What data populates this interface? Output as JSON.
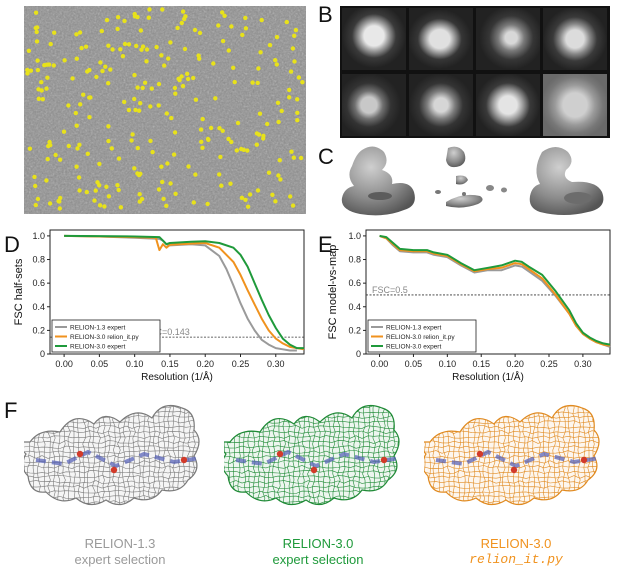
{
  "panels": {
    "A": "",
    "B": "B",
    "C": "C",
    "D": "D",
    "E": "E",
    "F": "F"
  },
  "colors": {
    "grey": "#9a9a9a",
    "orange": "#f0921e",
    "green": "#1f9a3b",
    "particle": "#e8e21a"
  },
  "chart_data": [
    {
      "type": "line",
      "title": "",
      "xlabel": "Resolution (1/Å)",
      "ylabel": "FSC half-sets",
      "xlim": [
        -0.02,
        0.34
      ],
      "ylim": [
        0,
        1.05
      ],
      "xticks": [
        "0.00",
        "0.05",
        "0.10",
        "0.15",
        "0.20",
        "0.25",
        "0.30"
      ],
      "yticks": [
        "0",
        "0.2",
        "0.4",
        "0.6",
        "0.8",
        "1.0"
      ],
      "threshold": {
        "value": 0.143,
        "label": "FSC=0.143"
      },
      "legend_position": "bottom-left",
      "series": [
        {
          "name": "RELION-1.3 expert",
          "color": "#9a9a9a",
          "x": [
            0,
            0.05,
            0.1,
            0.135,
            0.14,
            0.145,
            0.15,
            0.18,
            0.2,
            0.22,
            0.23,
            0.24,
            0.25,
            0.26,
            0.27,
            0.28,
            0.29,
            0.3,
            0.31,
            0.32,
            0.33
          ],
          "y": [
            1.0,
            0.995,
            0.985,
            0.975,
            0.96,
            0.93,
            0.92,
            0.93,
            0.92,
            0.83,
            0.72,
            0.58,
            0.43,
            0.3,
            0.2,
            0.12,
            0.08,
            0.05,
            0.04,
            0.03,
            0.03
          ]
        },
        {
          "name": "RELION-3.0 relion_it.py",
          "color": "#f0921e",
          "x": [
            0,
            0.05,
            0.1,
            0.13,
            0.135,
            0.14,
            0.145,
            0.15,
            0.18,
            0.2,
            0.22,
            0.24,
            0.25,
            0.26,
            0.27,
            0.28,
            0.29,
            0.3,
            0.31,
            0.32,
            0.33,
            0.34
          ],
          "y": [
            1.0,
            0.995,
            0.99,
            0.985,
            0.88,
            0.93,
            0.9,
            0.925,
            0.935,
            0.94,
            0.9,
            0.78,
            0.67,
            0.54,
            0.42,
            0.3,
            0.2,
            0.13,
            0.09,
            0.06,
            0.05,
            0.04
          ]
        },
        {
          "name": "RELION-3.0 expert",
          "color": "#1f9a3b",
          "x": [
            0,
            0.05,
            0.1,
            0.135,
            0.14,
            0.145,
            0.15,
            0.18,
            0.2,
            0.22,
            0.24,
            0.25,
            0.26,
            0.27,
            0.28,
            0.29,
            0.3,
            0.31,
            0.32,
            0.33,
            0.34
          ],
          "y": [
            1.0,
            0.998,
            0.995,
            0.99,
            0.96,
            0.93,
            0.94,
            0.95,
            0.955,
            0.94,
            0.9,
            0.84,
            0.74,
            0.6,
            0.46,
            0.33,
            0.22,
            0.13,
            0.08,
            0.05,
            0.05
          ]
        }
      ]
    },
    {
      "type": "line",
      "title": "",
      "xlabel": "Resolution (1/Å)",
      "ylabel": "FSC model-vs-map",
      "xlim": [
        -0.02,
        0.34
      ],
      "ylim": [
        0,
        1.05
      ],
      "xticks": [
        "0.00",
        "0.05",
        "0.10",
        "0.15",
        "0.20",
        "0.25",
        "0.30"
      ],
      "yticks": [
        "0",
        "0.2",
        "0.4",
        "0.6",
        "0.8",
        "1.0"
      ],
      "threshold": {
        "value": 0.5,
        "label": "FSC=0.5"
      },
      "legend_position": "bottom-left",
      "series": [
        {
          "name": "RELION-1.3 expert",
          "color": "#9a9a9a",
          "x": [
            0,
            0.01,
            0.02,
            0.03,
            0.05,
            0.07,
            0.08,
            0.1,
            0.12,
            0.14,
            0.16,
            0.18,
            0.2,
            0.21,
            0.22,
            0.24,
            0.26,
            0.28,
            0.29,
            0.3,
            0.31,
            0.32,
            0.33,
            0.34
          ],
          "y": [
            1.0,
            0.98,
            0.92,
            0.87,
            0.86,
            0.86,
            0.84,
            0.82,
            0.75,
            0.69,
            0.71,
            0.71,
            0.75,
            0.74,
            0.7,
            0.62,
            0.49,
            0.34,
            0.24,
            0.17,
            0.13,
            0.1,
            0.08,
            0.06
          ]
        },
        {
          "name": "RELION-3.0 relion_it.py",
          "color": "#f0921e",
          "x": [
            0,
            0.01,
            0.02,
            0.03,
            0.05,
            0.07,
            0.08,
            0.1,
            0.12,
            0.14,
            0.16,
            0.18,
            0.2,
            0.21,
            0.22,
            0.24,
            0.26,
            0.28,
            0.29,
            0.3,
            0.31,
            0.32,
            0.33,
            0.34
          ],
          "y": [
            1.0,
            0.98,
            0.93,
            0.88,
            0.87,
            0.87,
            0.85,
            0.83,
            0.76,
            0.7,
            0.72,
            0.73,
            0.77,
            0.76,
            0.72,
            0.64,
            0.5,
            0.34,
            0.24,
            0.17,
            0.13,
            0.1,
            0.08,
            0.07
          ]
        },
        {
          "name": "RELION-3.0 expert",
          "color": "#1f9a3b",
          "x": [
            0,
            0.01,
            0.02,
            0.03,
            0.05,
            0.07,
            0.08,
            0.1,
            0.12,
            0.14,
            0.16,
            0.18,
            0.2,
            0.21,
            0.22,
            0.24,
            0.26,
            0.28,
            0.29,
            0.3,
            0.31,
            0.32,
            0.33,
            0.34
          ],
          "y": [
            1.0,
            0.99,
            0.94,
            0.89,
            0.88,
            0.88,
            0.86,
            0.84,
            0.77,
            0.71,
            0.73,
            0.75,
            0.79,
            0.78,
            0.74,
            0.67,
            0.53,
            0.37,
            0.26,
            0.18,
            0.14,
            0.11,
            0.09,
            0.08
          ]
        }
      ]
    }
  ],
  "figure_f": {
    "captions": [
      {
        "line1": "RELION-1.3",
        "line2": "expert selection",
        "color": "#9a9a9a",
        "mono": false
      },
      {
        "line1": "RELION-3.0",
        "line2": "expert selection",
        "color": "#1f9a3b",
        "mono": false
      },
      {
        "line1": "RELION-3.0",
        "line2": "relion_it.py",
        "color": "#f0921e",
        "mono": true
      }
    ]
  }
}
